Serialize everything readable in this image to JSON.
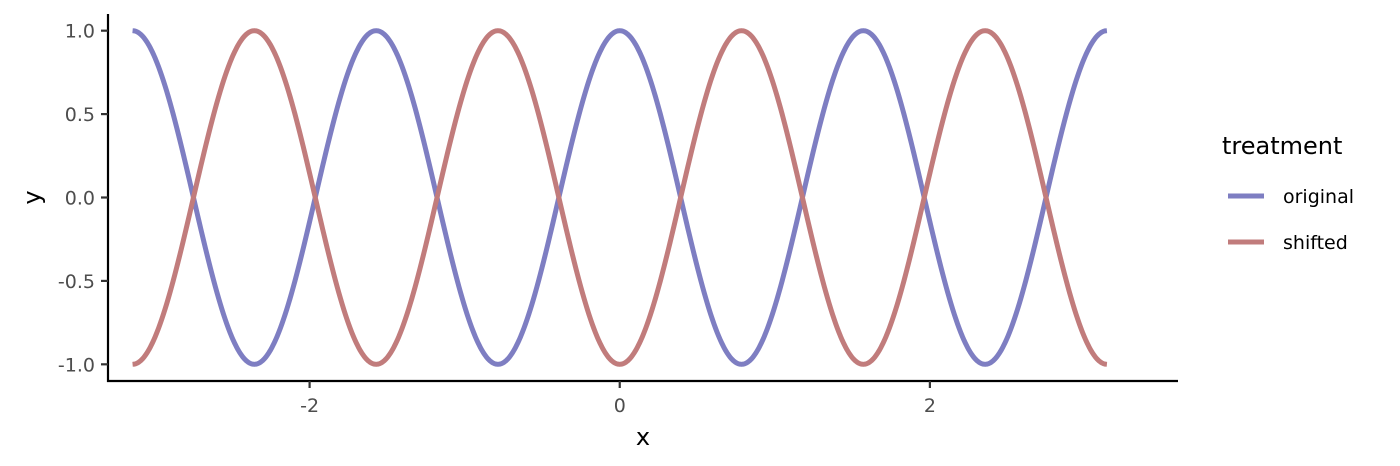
{
  "chart_data": {
    "type": "line",
    "xlabel": "x",
    "ylabel": "y",
    "xlim": [
      -3.3,
      3.6
    ],
    "ylim": [
      -1.1,
      1.1
    ],
    "x_ticks": [
      -2,
      0,
      2
    ],
    "x_tick_labels": [
      "-2",
      "0",
      "2"
    ],
    "y_ticks": [
      -1.0,
      -0.5,
      0.0,
      0.5,
      1.0
    ],
    "y_tick_labels": [
      "-1.0",
      "-0.5",
      "0.0",
      "0.5",
      "1.0"
    ],
    "x_range": [
      -3.14159,
      3.14159
    ],
    "grid": false,
    "legend": {
      "title": "treatment",
      "placement": "right"
    },
    "series": [
      {
        "name": "original",
        "formula": "y = cos(4x)",
        "color": "#7e7ec2",
        "x": [
          -3.1416,
          -2.7489,
          -2.3562,
          -1.9635,
          -1.5708,
          -1.1781,
          -0.7854,
          -0.3927,
          0,
          0.3927,
          0.7854,
          1.1781,
          1.5708,
          1.9635,
          2.3562,
          2.7489,
          3.1416
        ],
        "y": [
          1,
          0,
          -1,
          0,
          1,
          0,
          -1,
          0,
          1,
          0,
          -1,
          0,
          1,
          0,
          -1,
          0,
          1
        ]
      },
      {
        "name": "shifted",
        "formula": "y = -cos(4x)",
        "color": "#c17c7c",
        "x": [
          -3.1416,
          -2.7489,
          -2.3562,
          -1.9635,
          -1.5708,
          -1.1781,
          -0.7854,
          -0.3927,
          0,
          0.3927,
          0.7854,
          1.1781,
          1.5708,
          1.9635,
          2.3562,
          2.7489,
          3.1416
        ],
        "y": [
          -1,
          0,
          1,
          0,
          -1,
          0,
          1,
          0,
          -1,
          0,
          1,
          0,
          -1,
          0,
          1,
          0,
          -1
        ]
      }
    ]
  }
}
